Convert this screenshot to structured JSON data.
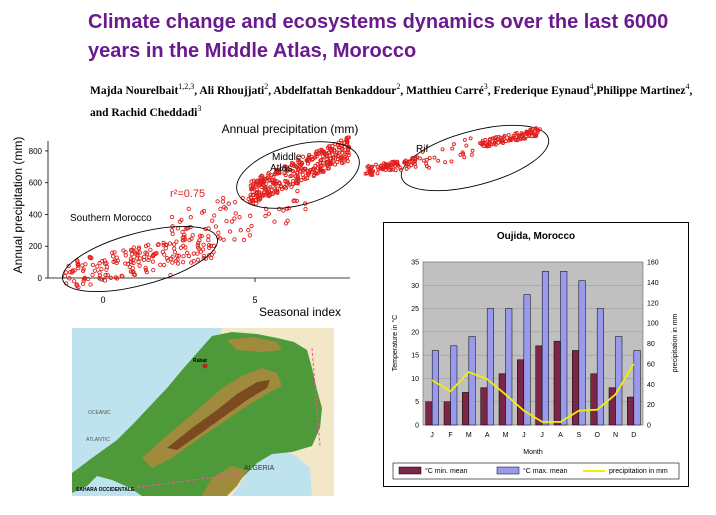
{
  "paper": {
    "title": "Climate change and ecosystems dynamics over the last 6000 years in the Middle Atlas, Morocco",
    "authors": [
      {
        "name": "Majda Nourelbait",
        "aff": "1,2,3",
        "sep": ", "
      },
      {
        "name": "Ali Rhoujjati",
        "aff": "2",
        "sep": ", "
      },
      {
        "name": "Abdelfattah Benkaddour",
        "aff": "2",
        "sep": ", "
      },
      {
        "name": "Matthieu Carré",
        "aff": "3",
        "sep": ", "
      },
      {
        "name": "Frederique Eynaud",
        "aff": "4",
        "sep": ","
      },
      {
        "name": "Philippe Martinez",
        "aff": "4",
        "sep": ", and "
      },
      {
        "name": "Rachid Cheddadi",
        "aff": "3",
        "sep": ""
      }
    ]
  },
  "scatter": {
    "title": "Annual precipitation (mm)",
    "xlabel": "Seasonal index",
    "ylabel": "Annual precipitation (mm)",
    "r2_label": "r²=0.75",
    "xticks": [
      "0",
      "5"
    ],
    "yticks": [
      "0",
      "200",
      "400",
      "600",
      "800"
    ],
    "regions": {
      "southern": "Southern Morocco",
      "middle_1": "Middle",
      "middle_2": "Atlas",
      "rif": "Rif"
    },
    "colors": {
      "points": "#e0201c",
      "ellipse": "#000000"
    }
  },
  "map": {
    "labels": {
      "rabat": "Rabat",
      "oceanic": "OCEANIC",
      "atlantic": "ATLANTIC",
      "algeria": "ALGERIA",
      "sahara": "SAHARA OCCIDENTALE"
    },
    "colors": {
      "sea": "#bfe3ee",
      "low": "#4e9a3a",
      "mid": "#a08a3c",
      "high": "#7a4a20",
      "neighbor": "#f2e8c8"
    }
  },
  "chart_data": {
    "type": "bar",
    "title": "Oujida, Morocco",
    "categories": [
      "J",
      "F",
      "M",
      "A",
      "M",
      "J",
      "J",
      "A",
      "S",
      "O",
      "N",
      "D"
    ],
    "xlabel": "Month",
    "ylabel": "Temperature in °C",
    "y2label": "precipitation in mm",
    "ylim": [
      0,
      35
    ],
    "y2lim": [
      0,
      160
    ],
    "yticks": [
      0,
      5,
      10,
      15,
      20,
      25,
      30,
      35
    ],
    "y2ticks": [
      0,
      20,
      40,
      60,
      80,
      100,
      120,
      140,
      160
    ],
    "series": [
      {
        "name": "°C min. mean",
        "type": "bar",
        "color": "#7b2648",
        "values": [
          5,
          5,
          7,
          8,
          11,
          14,
          17,
          18,
          16,
          11,
          8,
          6
        ]
      },
      {
        "name": "°C max. mean",
        "type": "bar",
        "color": "#9999ee",
        "values": [
          16,
          17,
          19,
          25,
          25,
          28,
          33,
          33,
          31,
          25,
          19,
          16
        ]
      },
      {
        "name": "precipitation in mm",
        "type": "line",
        "axis": "right",
        "color": "#f0f000",
        "values": [
          44,
          33,
          52,
          45,
          30,
          14,
          3,
          3,
          14,
          15,
          30,
          60
        ]
      }
    ],
    "plot_bg": "#c0c0c0"
  }
}
